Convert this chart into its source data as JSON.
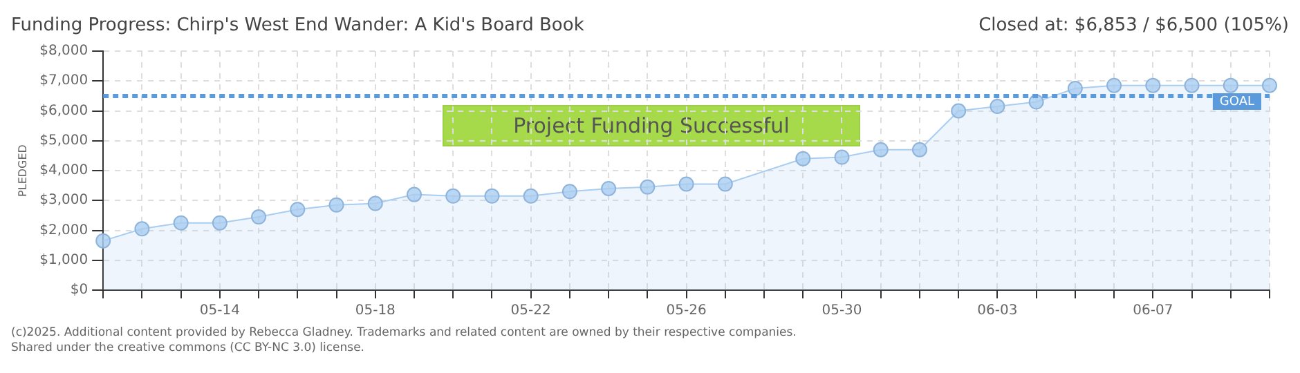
{
  "chart_data": {
    "type": "area",
    "title": "Funding Progress: Chirp's West End Wander: A Kid's Board Book",
    "subtitle": "Closed at: $6,853 / $6,500 (105%)",
    "ylabel": "PLEDGED",
    "categories": [
      null,
      null,
      null,
      "05-14",
      null,
      null,
      null,
      "05-18",
      null,
      null,
      null,
      "05-22",
      null,
      null,
      null,
      "05-26",
      null,
      null,
      null,
      "05-30",
      null,
      null,
      null,
      "06-03",
      null,
      null,
      null,
      "06-07",
      null,
      null,
      null
    ],
    "series": [
      {
        "color": "#a9cdf0",
        "values": [
          1650,
          2050,
          2250,
          2250,
          2450,
          2700,
          2850,
          2900,
          3200,
          3150,
          3150,
          3150,
          3300,
          3400,
          3450,
          3550,
          3550,
          null,
          4400,
          4450,
          4700,
          4700,
          6000,
          6150,
          6300,
          6750,
          6850,
          6850,
          6850,
          6850,
          6850
        ]
      }
    ],
    "ylim": [
      0,
      8000
    ],
    "yticks": [
      {
        "value": 0,
        "label": "$0"
      },
      {
        "value": 1000,
        "label": "$1,000"
      },
      {
        "value": 2000,
        "label": "$2,000"
      },
      {
        "value": 3000,
        "label": "$3,000"
      },
      {
        "value": 4000,
        "label": "$4,000"
      },
      {
        "value": 5000,
        "label": "$5,000"
      },
      {
        "value": 6000,
        "label": "$6,000"
      },
      {
        "value": 7000,
        "label": "$7,000"
      },
      {
        "value": 8000,
        "label": "$8,000"
      }
    ],
    "grid": true,
    "legend": false,
    "marker": "circle",
    "ref_lines": [
      {
        "axis": "y",
        "value": 6500,
        "label": "GOAL",
        "color": "#5b9bdc",
        "line_style": "dashed"
      }
    ],
    "annotations": [
      "Project Funding Successful",
      "(c)2025. Additional content provided by Rebecca Gladney. Trademarks and related content are owned by their respective companies.",
      "Shared under the creative commons (CC BY-NC 3.0) license."
    ]
  }
}
